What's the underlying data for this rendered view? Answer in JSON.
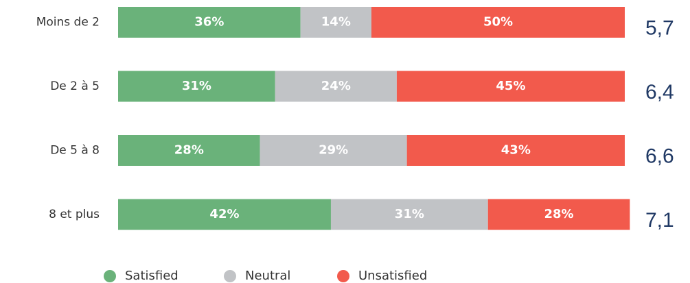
{
  "chart_data": {
    "type": "stacked-bar-horizontal",
    "categories": [
      "Moins de 2",
      "De 2 à 5",
      "De 5 à 8",
      "8 et plus"
    ],
    "series": [
      {
        "name": "Satisfied",
        "color": "#6ab27a",
        "values": [
          36,
          31,
          28,
          42
        ],
        "value_labels": [
          "36%",
          "31%",
          "28%",
          "42%"
        ]
      },
      {
        "name": "Neutral",
        "color": "#c1c3c6",
        "values": [
          14,
          24,
          29,
          31
        ],
        "value_labels": [
          "14%",
          "24%",
          "29%",
          "31%"
        ]
      },
      {
        "name": "Unsatisfied",
        "color": "#f25a4c",
        "values": [
          50,
          45,
          43,
          28
        ],
        "value_labels": [
          "50%",
          "45%",
          "43%",
          "28%"
        ]
      }
    ],
    "annotations": [
      "5,7",
      "6,4",
      "6,6",
      "7,1"
    ],
    "xlim": [
      0,
      100
    ],
    "legend": "bottom"
  }
}
